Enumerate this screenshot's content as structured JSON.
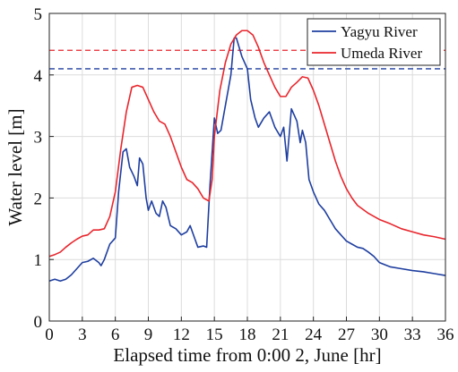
{
  "chart_data": {
    "type": "line",
    "x_label": "Elapsed time from 0:00 2, June [hr]",
    "y_label": "Water level [m]",
    "xlim": [
      0,
      36
    ],
    "ylim": [
      0,
      5
    ],
    "xticks": [
      0,
      3,
      6,
      9,
      12,
      15,
      18,
      21,
      24,
      27,
      30,
      33,
      36
    ],
    "yticks": [
      0,
      1,
      2,
      3,
      4,
      5
    ],
    "grid": true,
    "legend": "top-right",
    "reference_lines": [
      {
        "value": 4.4,
        "color": "#e8262d"
      },
      {
        "value": 4.1,
        "color": "#1f3fa0"
      }
    ],
    "series": [
      {
        "name": "Yagyu River",
        "color": "#1f3fa0",
        "x": [
          0,
          0.5,
          1,
          1.5,
          2,
          2.5,
          3,
          3.5,
          4,
          4.5,
          4.7,
          5,
          5.5,
          6,
          6.3,
          6.7,
          7,
          7.3,
          7.7,
          8,
          8.2,
          8.5,
          8.8,
          9,
          9.3,
          9.7,
          10,
          10.3,
          10.6,
          11,
          11.5,
          12,
          12.5,
          12.8,
          13.2,
          13.5,
          14,
          14.3,
          14.6,
          15,
          15.3,
          15.6,
          16,
          16.5,
          16.8,
          17,
          17.5,
          18,
          18.3,
          18.7,
          19,
          19.5,
          20,
          20.5,
          21,
          21.3,
          21.6,
          22,
          22.5,
          22.8,
          23,
          23.3,
          23.6,
          24,
          24.5,
          25,
          25.5,
          26,
          26.5,
          27,
          27.5,
          28,
          28.5,
          29,
          29.5,
          30,
          31,
          32,
          33,
          34,
          35,
          36
        ],
        "values": [
          0.65,
          0.68,
          0.65,
          0.68,
          0.75,
          0.85,
          0.95,
          0.97,
          1.02,
          0.95,
          0.9,
          1.0,
          1.25,
          1.35,
          2.1,
          2.75,
          2.8,
          2.5,
          2.35,
          2.2,
          2.65,
          2.55,
          2.0,
          1.8,
          1.95,
          1.75,
          1.7,
          1.95,
          1.85,
          1.55,
          1.5,
          1.4,
          1.45,
          1.55,
          1.35,
          1.2,
          1.22,
          1.2,
          2.2,
          3.3,
          3.05,
          3.1,
          3.5,
          4.0,
          4.6,
          4.6,
          4.3,
          4.1,
          3.6,
          3.3,
          3.15,
          3.3,
          3.4,
          3.15,
          3.0,
          3.15,
          2.6,
          3.45,
          3.25,
          2.9,
          3.1,
          2.9,
          2.3,
          2.1,
          1.9,
          1.8,
          1.65,
          1.5,
          1.4,
          1.3,
          1.25,
          1.2,
          1.18,
          1.12,
          1.05,
          0.95,
          0.88,
          0.85,
          0.82,
          0.8,
          0.77,
          0.74
        ]
      },
      {
        "name": "Umeda River",
        "color": "#e8262d",
        "x": [
          0,
          0.5,
          1,
          1.5,
          2,
          2.5,
          3,
          3.5,
          4,
          4.5,
          5,
          5.5,
          6,
          6.5,
          7,
          7.5,
          8,
          8.5,
          9,
          9.5,
          10,
          10.5,
          11,
          11.5,
          12,
          12.5,
          13,
          13.5,
          14,
          14.5,
          14.8,
          15,
          15.5,
          16,
          16.5,
          17,
          17.5,
          18,
          18.5,
          19,
          19.5,
          20,
          20.5,
          21,
          21.5,
          22,
          22.5,
          23,
          23.5,
          24,
          24.5,
          25,
          25.5,
          26,
          26.5,
          27,
          27.5,
          28,
          29,
          30,
          31,
          32,
          33,
          34,
          35,
          36
        ],
        "values": [
          1.05,
          1.08,
          1.12,
          1.2,
          1.27,
          1.33,
          1.38,
          1.4,
          1.48,
          1.48,
          1.5,
          1.7,
          2.1,
          2.8,
          3.4,
          3.8,
          3.83,
          3.8,
          3.6,
          3.4,
          3.25,
          3.2,
          3.0,
          2.75,
          2.5,
          2.3,
          2.25,
          2.15,
          2.0,
          1.95,
          2.3,
          3.0,
          3.75,
          4.2,
          4.5,
          4.65,
          4.72,
          4.72,
          4.65,
          4.45,
          4.2,
          4.0,
          3.8,
          3.65,
          3.65,
          3.8,
          3.88,
          3.97,
          3.95,
          3.75,
          3.5,
          3.2,
          2.9,
          2.6,
          2.35,
          2.15,
          2.0,
          1.88,
          1.75,
          1.65,
          1.58,
          1.5,
          1.45,
          1.4,
          1.37,
          1.33
        ]
      }
    ]
  }
}
